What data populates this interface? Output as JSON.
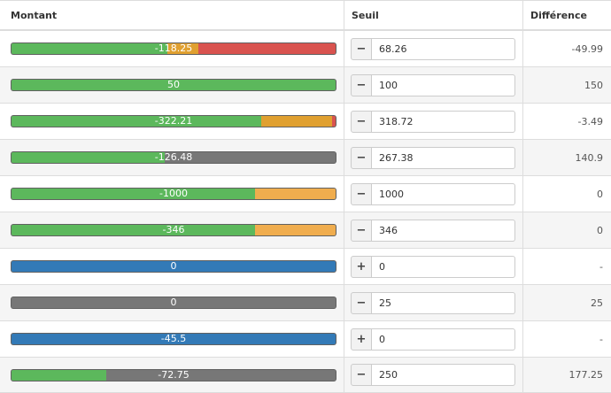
{
  "headers": {
    "montant": "Montant",
    "seuil": "Seuil",
    "difference": "Différence"
  },
  "colors": {
    "green": "#5cb85c",
    "red": "#d9534f",
    "orange": "#f0ad4e",
    "gray": "#777777",
    "blue": "#337ab7"
  },
  "rows": [
    {
      "montant": "-118.25",
      "seuil": "68.26",
      "difference": "-49.99",
      "sign": "−",
      "segments": [
        {
          "color": "#5cb85c",
          "start": 0,
          "end": 0.48
        },
        {
          "color": "#e0a030",
          "start": 0.48,
          "end": 0.577
        },
        {
          "color": "#d9534f",
          "start": 0.577,
          "end": 1
        }
      ]
    },
    {
      "montant": "50",
      "seuil": "100",
      "difference": "150",
      "sign": "−",
      "segments": [
        {
          "color": "#5cb85c",
          "start": 0,
          "end": 1
        }
      ]
    },
    {
      "montant": "-322.21",
      "seuil": "318.72",
      "difference": "-3.49",
      "sign": "−",
      "segments": [
        {
          "color": "#5cb85c",
          "start": 0,
          "end": 0.77
        },
        {
          "color": "#e0a030",
          "start": 0.77,
          "end": 0.99
        },
        {
          "color": "#d9534f",
          "start": 0.99,
          "end": 1
        }
      ]
    },
    {
      "montant": "-126.48",
      "seuil": "267.38",
      "difference": "140.9",
      "sign": "−",
      "segments": [
        {
          "color": "#5cb85c",
          "start": 0,
          "end": 0.473
        },
        {
          "color": "#777777",
          "start": 0.473,
          "end": 1
        }
      ]
    },
    {
      "montant": "-1000",
      "seuil": "1000",
      "difference": "0",
      "sign": "−",
      "segments": [
        {
          "color": "#5cb85c",
          "start": 0,
          "end": 0.752
        },
        {
          "color": "#f0ad4e",
          "start": 0.752,
          "end": 1
        }
      ]
    },
    {
      "montant": "-346",
      "seuil": "346",
      "difference": "0",
      "sign": "−",
      "segments": [
        {
          "color": "#5cb85c",
          "start": 0,
          "end": 0.752
        },
        {
          "color": "#f0ad4e",
          "start": 0.752,
          "end": 1
        }
      ]
    },
    {
      "montant": "0",
      "seuil": "0",
      "difference": "-",
      "sign": "+",
      "segments": [
        {
          "color": "#337ab7",
          "start": 0,
          "end": 1
        }
      ]
    },
    {
      "montant": "0",
      "seuil": "25",
      "difference": "25",
      "sign": "−",
      "segments": [
        {
          "color": "#777777",
          "start": 0,
          "end": 1
        }
      ]
    },
    {
      "montant": "-45.5",
      "seuil": "0",
      "difference": "-",
      "sign": "+",
      "segments": [
        {
          "color": "#337ab7",
          "start": 0,
          "end": 1
        }
      ]
    },
    {
      "montant": "-72.75",
      "seuil": "250",
      "difference": "177.25",
      "sign": "−",
      "segments": [
        {
          "color": "#5cb85c",
          "start": 0,
          "end": 0.291
        },
        {
          "color": "#777777",
          "start": 0.291,
          "end": 1
        }
      ]
    }
  ]
}
